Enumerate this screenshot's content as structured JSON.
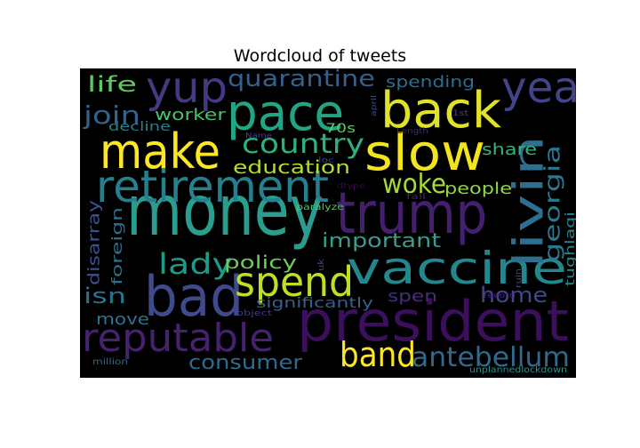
{
  "figure": {
    "title": "Wordcloud of tweets",
    "background": "#000000"
  },
  "words": [
    {
      "id": "money",
      "text": "money",
      "color": "#2a9d8f"
    },
    {
      "id": "pace",
      "text": "pace",
      "color": "#21a685"
    },
    {
      "id": "back",
      "text": "back",
      "color": "#e0e22a"
    },
    {
      "id": "slow",
      "text": "slow",
      "color": "#f2e51d"
    },
    {
      "id": "make",
      "text": "make",
      "color": "#fde725"
    },
    {
      "id": "president",
      "text": "president",
      "color": "#3b0f5c"
    },
    {
      "id": "trump",
      "text": "trump",
      "color": "#43206e"
    },
    {
      "id": "retirement",
      "text": "retirement",
      "color": "#277f8e"
    },
    {
      "id": "vaccine",
      "text": "vaccine",
      "color": "#23888e"
    },
    {
      "id": "bad",
      "text": "bad",
      "color": "#3f4a8a"
    },
    {
      "id": "reputable",
      "text": "reputable",
      "color": "#46216c"
    },
    {
      "id": "spend",
      "text": "spend",
      "color": "#bddf26"
    },
    {
      "id": "yup",
      "text": "yup",
      "color": "#443a83"
    },
    {
      "id": "yea",
      "text": "yea",
      "color": "#414487"
    },
    {
      "id": "livin",
      "text": "livin",
      "color": "#2e6e8e"
    },
    {
      "id": "band",
      "text": "band",
      "color": "#fde725"
    },
    {
      "id": "antebellum",
      "text": "antebellum",
      "color": "#31688e"
    },
    {
      "id": "country",
      "text": "country",
      "color": "#2db27d"
    },
    {
      "id": "quarantine",
      "text": "quarantine",
      "color": "#355f8d"
    },
    {
      "id": "woke",
      "text": "woke",
      "color": "#a5db36"
    },
    {
      "id": "join",
      "text": "join",
      "color": "#33638d"
    },
    {
      "id": "lady",
      "text": "lady",
      "color": "#1f9a8a"
    },
    {
      "id": "georgia",
      "text": "georgia",
      "color": "#2a788e"
    },
    {
      "id": "important",
      "text": "important",
      "color": "#3c9b8a"
    },
    {
      "id": "home",
      "text": "home",
      "color": "#3e4989"
    },
    {
      "id": "life",
      "text": "life",
      "color": "#5ec962"
    },
    {
      "id": "consumer",
      "text": "consumer",
      "color": "#2f6b8e"
    },
    {
      "id": "education",
      "text": "education",
      "color": "#b5de2b"
    },
    {
      "id": "policy",
      "text": "policy",
      "color": "#6ccd5a"
    },
    {
      "id": "people",
      "text": "people",
      "color": "#8fd744"
    },
    {
      "id": "spending",
      "text": "spending",
      "color": "#2f6c8e"
    },
    {
      "id": "worker",
      "text": "worker",
      "color": "#4ac16d"
    },
    {
      "id": "share",
      "text": "share",
      "color": "#35b779"
    },
    {
      "id": "isn",
      "text": "isn",
      "color": "#2c728e"
    },
    {
      "id": "spen",
      "text": "spen",
      "color": "#472d7b"
    },
    {
      "id": "move",
      "text": "move",
      "color": "#2c728e"
    },
    {
      "id": "significantly",
      "text": "significantly",
      "color": "#34608d"
    },
    {
      "id": "foreign",
      "text": "foreign",
      "color": "#2d708e"
    },
    {
      "id": "disarray",
      "text": "disarray",
      "color": "#3b528b"
    },
    {
      "id": "decline",
      "text": "decline",
      "color": "#27808e"
    },
    {
      "id": "70s",
      "text": "70s",
      "color": "#5ec962"
    },
    {
      "id": "tughlaqi",
      "text": "tughlaqi",
      "color": "#25858e"
    },
    {
      "id": "paralyze",
      "text": "paralyze",
      "color": "#52c569"
    },
    {
      "id": "unplannedlockdown",
      "text": "unplannedlockdown",
      "color": "#1f968b"
    },
    {
      "id": "million",
      "text": "million",
      "color": "#31688e"
    },
    {
      "id": "object",
      "text": "object",
      "color": "#453781"
    },
    {
      "id": "uk",
      "text": "uk",
      "color": "#3e4a89"
    },
    {
      "id": "name",
      "text": "Name",
      "color": "#414487"
    },
    {
      "id": "april",
      "text": "april",
      "color": "#3b528b"
    },
    {
      "id": "length",
      "text": "Length",
      "color": "#482677"
    },
    {
      "id": "1st",
      "text": "1st",
      "color": "#404688"
    },
    {
      "id": "loc",
      "text": "loc",
      "color": "#433e85"
    },
    {
      "id": "dtype",
      "text": "dtype",
      "color": "#440154"
    },
    {
      "id": "fall",
      "text": "fall",
      "color": "#481f70"
    },
    {
      "id": "record",
      "text": "record",
      "color": "#482475"
    },
    {
      "id": "ruin",
      "text": "ruin",
      "color": "#3e4989"
    }
  ]
}
